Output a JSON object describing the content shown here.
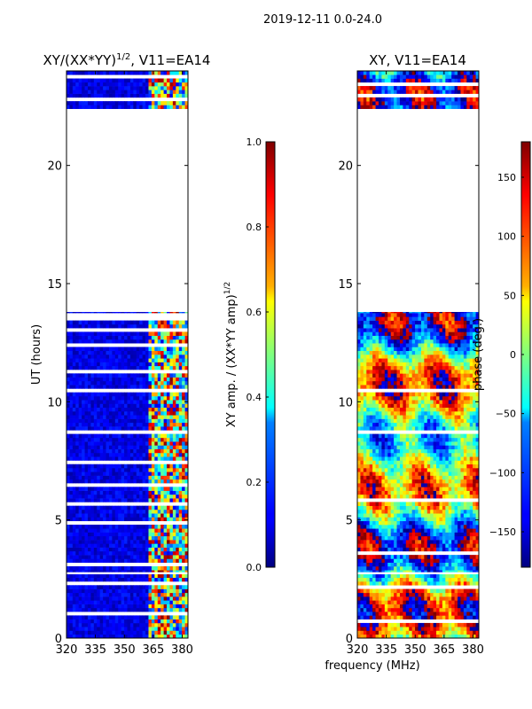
{
  "figure": {
    "suptitle": "2019-12-11 0.0-24.0",
    "xlabel": "frequency (MHz)"
  },
  "chart_data": [
    {
      "type": "heatmap",
      "title_main": "XY/(XX*YY)",
      "title_sup": "1/2",
      "title_rest": ", V11=EA14",
      "xlabel": "",
      "ylabel": "UT (hours)",
      "xlim": [
        320,
        383
      ],
      "ylim": [
        0,
        24
      ],
      "xticks": [
        320,
        335,
        350,
        365,
        380
      ],
      "yticks": [
        0,
        5,
        10,
        15,
        20
      ],
      "data_blocks_hours": [
        [
          0,
          2.7
        ],
        [
          2.8,
          13.8
        ],
        [
          22.4,
          24
        ]
      ],
      "gap_hours": [
        13.8,
        22.4
      ],
      "bright_channels_mhz": [
        363,
        383
      ],
      "colormap": "jet",
      "colorbar": {
        "label_main": "XY amp. / (XX*YY amp)",
        "label_sup": "1/2",
        "ticks": [
          "0.0",
          "0.2",
          "0.4",
          "0.6",
          "0.8",
          "1.0"
        ],
        "range": [
          0,
          1
        ]
      }
    },
    {
      "type": "heatmap",
      "title": "XY, V11=EA14",
      "xlabel": "",
      "ylabel": "",
      "xlim": [
        320,
        383
      ],
      "ylim": [
        0,
        24
      ],
      "xticks": [
        320,
        335,
        350,
        365,
        380
      ],
      "yticks": [
        0,
        5,
        10,
        15,
        20
      ],
      "data_blocks_hours": [
        [
          0,
          2.7
        ],
        [
          2.8,
          13.8
        ],
        [
          22.4,
          24
        ]
      ],
      "gap_hours": [
        13.8,
        22.4
      ],
      "colormap": "jet",
      "colorbar": {
        "label": "phase (deg.)",
        "ticks": [
          "150",
          "100",
          "50",
          "0",
          "−50",
          "−100",
          "−150"
        ],
        "tick_values": [
          150,
          100,
          50,
          0,
          -50,
          -100,
          -150
        ],
        "range": [
          -180,
          180
        ]
      }
    }
  ]
}
